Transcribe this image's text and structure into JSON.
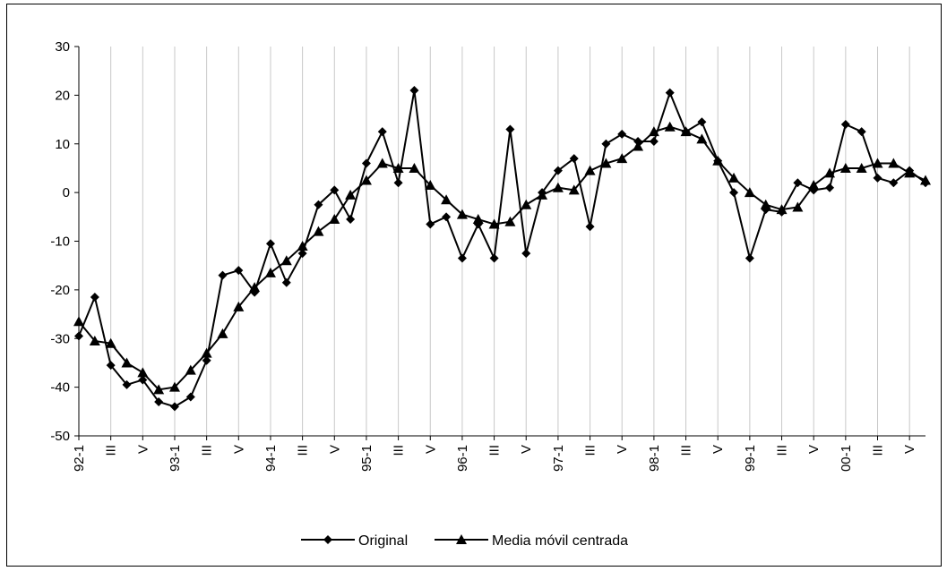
{
  "chart_data": {
    "type": "line",
    "title": "",
    "xlabel": "",
    "ylabel": "",
    "ylim": [
      -50,
      30
    ],
    "yticks": [
      30,
      20,
      10,
      0,
      -10,
      -20,
      -30,
      -40,
      -50
    ],
    "xtick_labels": [
      "92-1",
      "III",
      "V",
      "93-1",
      "III",
      "V",
      "94-1",
      "III",
      "V",
      "95-1",
      "III",
      "V",
      "96-1",
      "III",
      "V",
      "97-1",
      "III",
      "V",
      "98-1",
      "III",
      "V",
      "99-1",
      "III",
      "V",
      "00-1",
      "III",
      "V"
    ],
    "grid": "vertical",
    "legend": "bottom",
    "series": [
      {
        "name": "Original",
        "marker": "diamond",
        "values": [
          -29.5,
          -21.5,
          -35.5,
          -39.5,
          -38.5,
          -43,
          -44,
          -42,
          -34.5,
          -17,
          -16,
          -20.5,
          -10.5,
          -18.5,
          -12.5,
          -2.5,
          0.5,
          -5.5,
          6,
          12.5,
          2,
          21,
          -6.5,
          -5,
          -13.5,
          -6.5,
          -13.5,
          13,
          -12.5,
          0,
          4.5,
          7,
          -7,
          10,
          12,
          10.5,
          10.5,
          20.5,
          12.5,
          14.5,
          6.5,
          0,
          -13.5,
          -3.5,
          -4,
          2,
          0.5,
          1,
          14,
          12.5,
          3,
          2,
          4.5,
          2
        ]
      },
      {
        "name": "Media móvil centrada",
        "marker": "triangle",
        "values": [
          -26.5,
          -30.5,
          -31,
          -35,
          -37,
          -40.5,
          -40,
          -36.5,
          -33,
          -29,
          -23.5,
          -19.5,
          -16.5,
          -14,
          -11,
          -8,
          -5.5,
          -0.5,
          2.5,
          6,
          5,
          5,
          1.5,
          -1.5,
          -4.5,
          -5.5,
          -6.5,
          -6,
          -2.5,
          -0.5,
          1,
          0.5,
          4.5,
          6,
          7,
          9.5,
          12.5,
          13.5,
          12.5,
          11,
          6.5,
          3,
          0,
          -2.5,
          -3.5,
          -3,
          1.5,
          4,
          5,
          5,
          6,
          6,
          4,
          2.5
        ]
      }
    ]
  }
}
